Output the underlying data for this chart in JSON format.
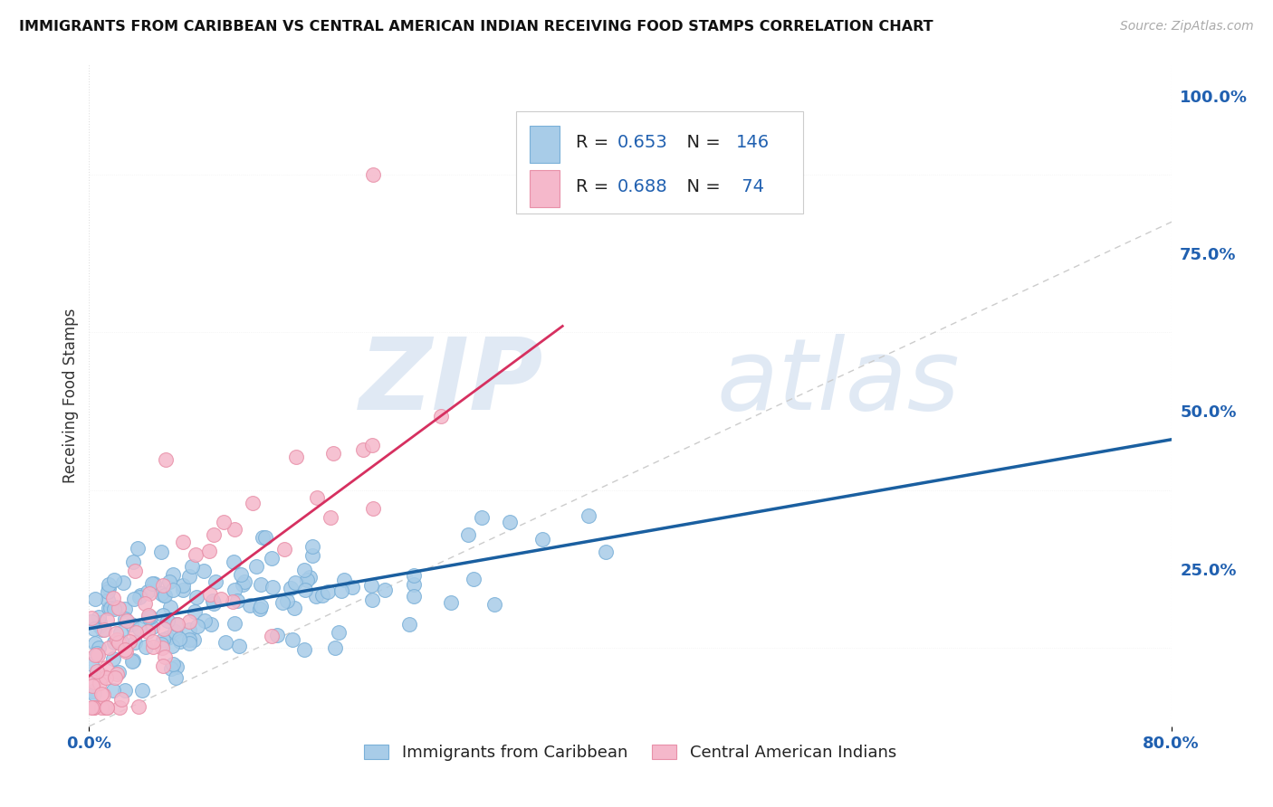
{
  "title": "IMMIGRANTS FROM CARIBBEAN VS CENTRAL AMERICAN INDIAN RECEIVING FOOD STAMPS CORRELATION CHART",
  "source": "Source: ZipAtlas.com",
  "ylabel": "Receiving Food Stamps",
  "xlim": [
    0.0,
    0.8
  ],
  "ylim": [
    0.0,
    1.05
  ],
  "blue_color": "#a8cce8",
  "blue_edge_color": "#7ab0d8",
  "pink_color": "#f5b8cb",
  "pink_edge_color": "#e890a8",
  "blue_line_color": "#1a5fa0",
  "pink_line_color": "#d63060",
  "diag_line_color": "#cccccc",
  "legend_R_blue": "0.653",
  "legend_N_blue": "146",
  "legend_R_pink": "0.688",
  "legend_N_pink": "74",
  "legend_label_blue": "Immigrants from Caribbean",
  "legend_label_pink": "Central American Indians",
  "blue_trend_x0": 0.0,
  "blue_trend_y0": 0.155,
  "blue_trend_x1": 0.8,
  "blue_trend_y1": 0.455,
  "pink_trend_x0": 0.0,
  "pink_trend_y0": 0.08,
  "pink_trend_x1": 0.35,
  "pink_trend_y1": 0.635,
  "watermark_zip": "ZIP",
  "watermark_atlas": "atlas",
  "grid_color": "#e8e8e8",
  "title_fontsize": 11.5,
  "source_fontsize": 10,
  "tick_fontsize": 13,
  "ylabel_fontsize": 12,
  "legend_fontsize": 13
}
